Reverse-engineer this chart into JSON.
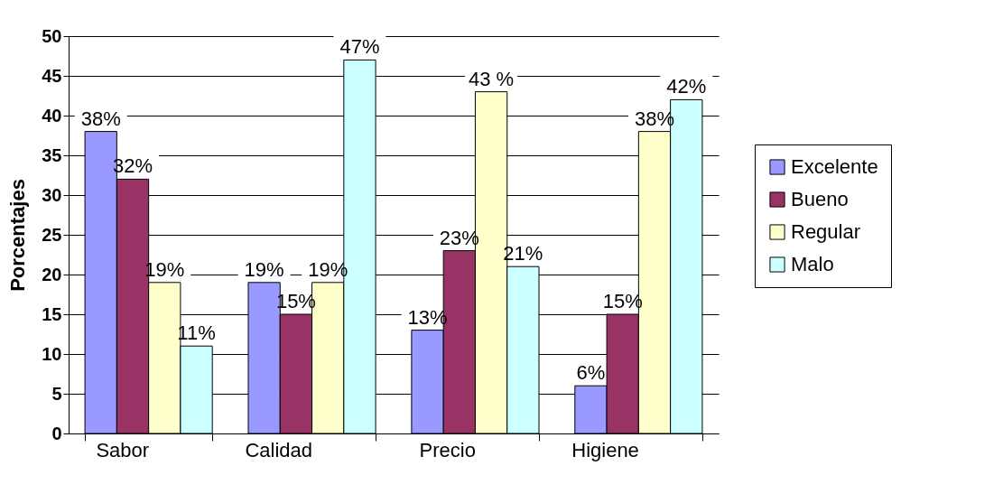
{
  "chart_data": {
    "type": "bar",
    "ylabel": "Porcentajes",
    "categories": [
      "Sabor",
      "Calidad",
      "Precio",
      "Higiene"
    ],
    "series": [
      {
        "name": "Excelente",
        "color": "#9999ff",
        "values": [
          38,
          19,
          13,
          6
        ],
        "value_labels": [
          "38%",
          "19%",
          "13%",
          "6%"
        ]
      },
      {
        "name": "Bueno",
        "color": "#993366",
        "values": [
          32,
          15,
          23,
          15
        ],
        "value_labels": [
          "32%",
          "15%",
          "23%",
          "15%"
        ]
      },
      {
        "name": "Regular",
        "color": "#ffffcc",
        "values": [
          19,
          19,
          43,
          38
        ],
        "value_labels": [
          "19%",
          "19%",
          "43 %",
          "38%"
        ]
      },
      {
        "name": "Malo",
        "color": "#ccffff",
        "values": [
          11,
          47,
          21,
          42
        ],
        "value_labels": [
          "11%",
          "47%",
          "21%",
          "42%"
        ]
      }
    ],
    "ylim": [
      0,
      50
    ],
    "yticks": [
      0,
      5,
      10,
      15,
      20,
      25,
      30,
      35,
      40,
      45,
      50
    ],
    "grid": "y",
    "legend": "right"
  }
}
